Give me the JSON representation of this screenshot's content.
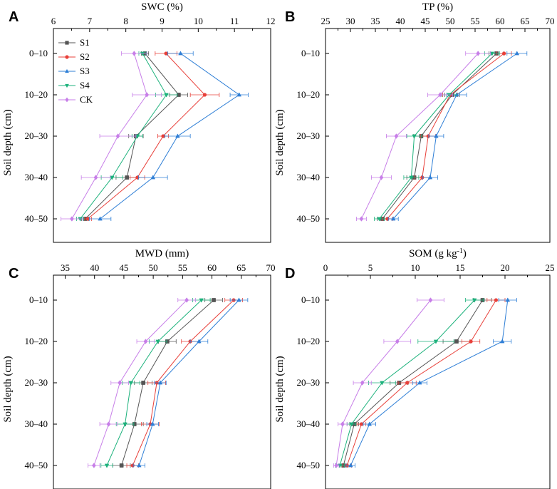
{
  "figure": {
    "categories": [
      "0–10",
      "10–20",
      "20–30",
      "30–40",
      "40–50"
    ],
    "ylabel": "Soil depth (cm)",
    "series_names": [
      "S1",
      "S2",
      "S3",
      "S4",
      "CK"
    ],
    "series_colors": [
      "#555555",
      "#e8403a",
      "#2f7fd6",
      "#1db27c",
      "#c77ee8"
    ],
    "series_markers": [
      "square",
      "circle",
      "triangle-up",
      "triangle-down",
      "diamond"
    ]
  },
  "chart_data": [
    {
      "panel": "A",
      "type": "line",
      "title": "",
      "xlabel": "SWC (%)",
      "xlabel_sup": "",
      "ylabel": "Soil depth (cm)",
      "categories": [
        "0–10",
        "10–20",
        "20–30",
        "30–40",
        "40–50"
      ],
      "xlim": [
        6,
        12
      ],
      "xticks": [
        "6",
        "7",
        "8",
        "9",
        "10",
        "11",
        "12"
      ],
      "series": [
        {
          "name": "S1",
          "values": [
            8.53,
            9.46,
            8.28,
            8.03,
            6.88
          ],
          "errors": [
            0.1,
            0.25,
            0.2,
            0.3,
            0.1
          ]
        },
        {
          "name": "S2",
          "values": [
            9.11,
            10.18,
            9.03,
            8.32,
            6.95
          ],
          "errors": [
            0.3,
            0.4,
            0.15,
            0.2,
            0.1
          ]
        },
        {
          "name": "S3",
          "values": [
            9.51,
            11.13,
            9.43,
            8.75,
            7.29
          ],
          "errors": [
            0.35,
            0.25,
            0.35,
            0.4,
            0.3
          ]
        },
        {
          "name": "S4",
          "values": [
            8.46,
            9.12,
            8.32,
            7.62,
            6.74
          ],
          "errors": [
            0.1,
            0.3,
            0.15,
            0.3,
            0.1
          ]
        },
        {
          "name": "CK",
          "values": [
            8.23,
            8.58,
            7.78,
            7.17,
            6.51
          ],
          "errors": [
            0.35,
            0.4,
            0.5,
            0.4,
            0.3
          ]
        }
      ]
    },
    {
      "panel": "B",
      "type": "line",
      "title": "",
      "xlabel": "TP (%)",
      "xlabel_sup": "",
      "ylabel": "Soil depth (cm)",
      "categories": [
        "0–10",
        "10–20",
        "20–30",
        "30–40",
        "40–50"
      ],
      "xlim": [
        25,
        70
      ],
      "xticks": [
        "25",
        "30",
        "35",
        "40",
        "45",
        "50",
        "55",
        "60",
        "65",
        "70"
      ],
      "series": [
        {
          "name": "S1",
          "values": [
            59.3,
            50.4,
            44.2,
            42.8,
            36.4
          ],
          "errors": [
            1.5,
            1.5,
            1.5,
            1.5,
            1.0
          ]
        },
        {
          "name": "S2",
          "values": [
            60.8,
            50.0,
            45.6,
            44.4,
            37.4
          ],
          "errors": [
            1.5,
            1.5,
            1.5,
            1.5,
            1.0
          ]
        },
        {
          "name": "S3",
          "values": [
            63.4,
            51.3,
            47.2,
            46.0,
            38.6
          ],
          "errors": [
            2.0,
            2.0,
            1.5,
            1.5,
            1.0
          ]
        },
        {
          "name": "S4",
          "values": [
            58.4,
            49.8,
            42.8,
            42.2,
            35.8
          ],
          "errors": [
            1.5,
            1.5,
            1.5,
            1.5,
            1.0
          ]
        },
        {
          "name": "CK",
          "values": [
            55.6,
            48.0,
            39.2,
            36.2,
            32.2
          ],
          "errors": [
            2.5,
            2.5,
            2.0,
            2.0,
            1.0
          ]
        }
      ]
    },
    {
      "panel": "C",
      "type": "line",
      "title": "",
      "xlabel": "MWD (mm)",
      "xlabel_sup": "",
      "ylabel": "Soil depth (cm)",
      "categories": [
        "0–10",
        "10–20",
        "20–30",
        "30–40",
        "40–50"
      ],
      "xlim": [
        33,
        70
      ],
      "xticks": [
        "35",
        "40",
        "45",
        "50",
        "55",
        "60",
        "65",
        "70"
      ],
      "tick_values": [
        35,
        40,
        45,
        50,
        55,
        60,
        65,
        70
      ],
      "series": [
        {
          "name": "S1",
          "values": [
            60.3,
            52.4,
            48.3,
            46.8,
            44.6
          ],
          "errors": [
            1.5,
            1.5,
            1.5,
            1.5,
            1.5
          ]
        },
        {
          "name": "S2",
          "values": [
            63.7,
            56.3,
            50.6,
            49.5,
            46.5
          ],
          "errors": [
            1.5,
            1.5,
            1.5,
            1.5,
            1.0
          ]
        },
        {
          "name": "S3",
          "values": [
            64.6,
            57.8,
            51.2,
            49.9,
            47.6
          ],
          "errors": [
            1.5,
            1.5,
            1.0,
            1.0,
            1.0
          ]
        },
        {
          "name": "S4",
          "values": [
            58.2,
            50.8,
            46.2,
            45.2,
            42.1
          ],
          "errors": [
            1.5,
            1.5,
            1.5,
            1.5,
            1.0
          ]
        },
        {
          "name": "CK",
          "values": [
            55.7,
            48.7,
            44.3,
            42.4,
            39.9
          ],
          "errors": [
            1.5,
            1.5,
            1.5,
            1.5,
            1.0
          ]
        }
      ]
    },
    {
      "panel": "D",
      "type": "line",
      "title": "",
      "xlabel": "SOM (g kg",
      "xlabel_sup": "-1",
      "xlabel_suffix": ")",
      "ylabel": "Soil depth (cm)",
      "categories": [
        "0–10",
        "10–20",
        "20–30",
        "30–40",
        "40–50"
      ],
      "xlim": [
        0,
        25
      ],
      "xticks": [
        "0",
        "5",
        "10",
        "15",
        "20",
        "25"
      ],
      "series": [
        {
          "name": "S1",
          "values": [
            17.5,
            14.6,
            8.2,
            3.2,
            2.0
          ],
          "errors": [
            1.0,
            1.5,
            1.0,
            0.5,
            0.5
          ]
        },
        {
          "name": "S2",
          "values": [
            19.0,
            16.2,
            9.1,
            4.0,
            2.4
          ],
          "errors": [
            1.0,
            1.0,
            1.0,
            0.5,
            0.5
          ]
        },
        {
          "name": "S3",
          "values": [
            20.3,
            19.7,
            10.5,
            4.9,
            2.8
          ],
          "errors": [
            1.0,
            1.0,
            0.8,
            0.7,
            0.5
          ]
        },
        {
          "name": "S4",
          "values": [
            16.6,
            12.3,
            6.3,
            2.9,
            1.6
          ],
          "errors": [
            1.0,
            2.0,
            1.5,
            0.5,
            0.5
          ]
        },
        {
          "name": "CK",
          "values": [
            11.7,
            8.0,
            4.1,
            1.9,
            1.2
          ],
          "errors": [
            1.5,
            1.5,
            1.0,
            0.5,
            0.3
          ]
        }
      ]
    }
  ]
}
